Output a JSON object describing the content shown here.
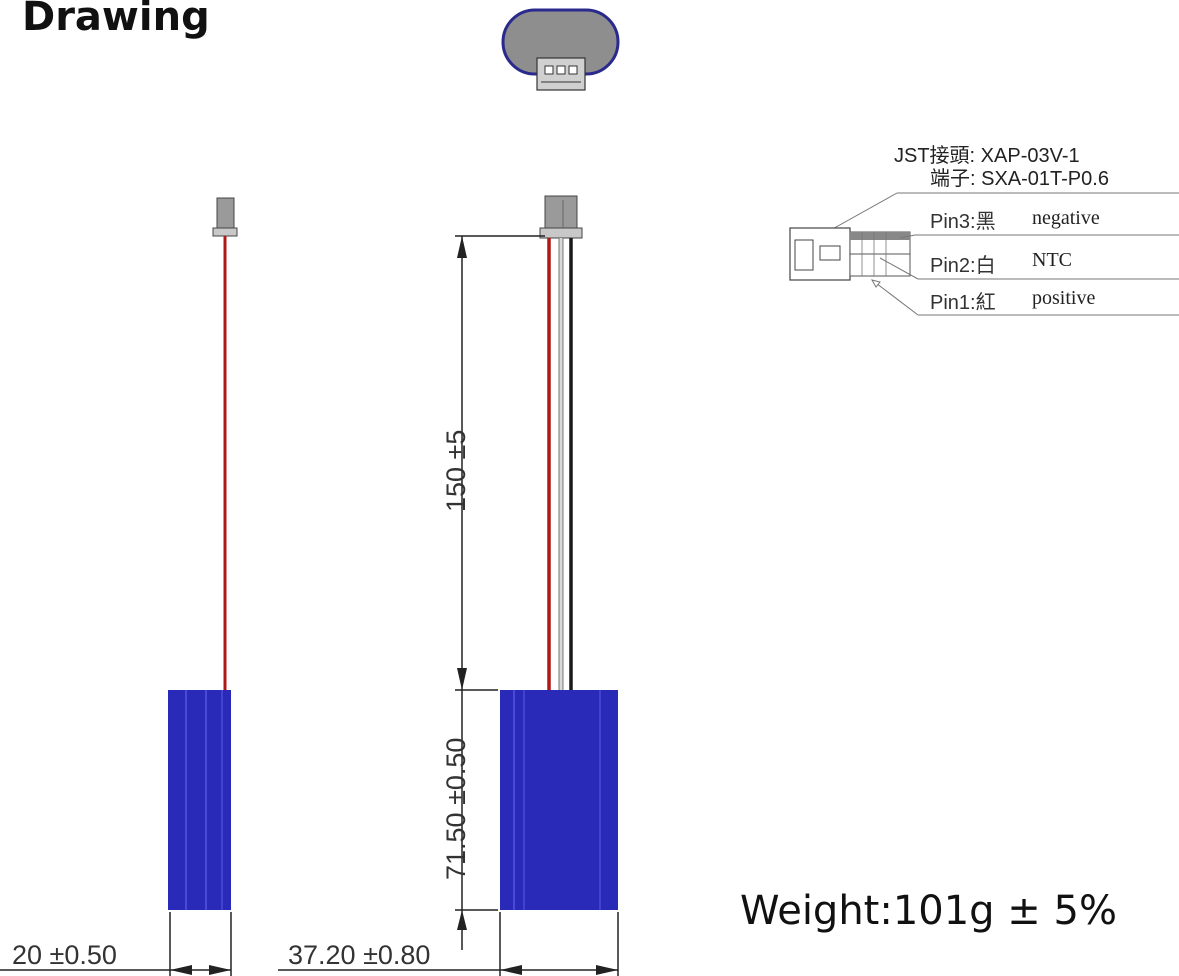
{
  "title": "Drawing",
  "connector_spec": {
    "header_line": "JST接頭: XAP-03V-1",
    "terminal_line": "端子: SXA-01T-P0.6"
  },
  "pins": [
    {
      "label": "Pin3:黑",
      "note": "negative"
    },
    {
      "label": "Pin2:白",
      "note": "NTC"
    },
    {
      "label": "Pin1:紅",
      "note": "positive"
    }
  ],
  "dimensions": {
    "lead_length": "150 ±5",
    "body_length": "71.50 ±0.50",
    "thickness": "20 ±0.50",
    "width": "37.20 ±0.80"
  },
  "weight": "Weight:101g ± 5%",
  "colors": {
    "cell_body": "#2a2ab8",
    "cell_highlight": "#4040d0",
    "wire_red": "#b01818",
    "wire_black": "#1a1a1a",
    "wire_white": "#d8d8d8",
    "connector": "#9a9a9a",
    "top_view_fill": "#8e8e8e",
    "top_view_outline": "#2a2a8c"
  }
}
